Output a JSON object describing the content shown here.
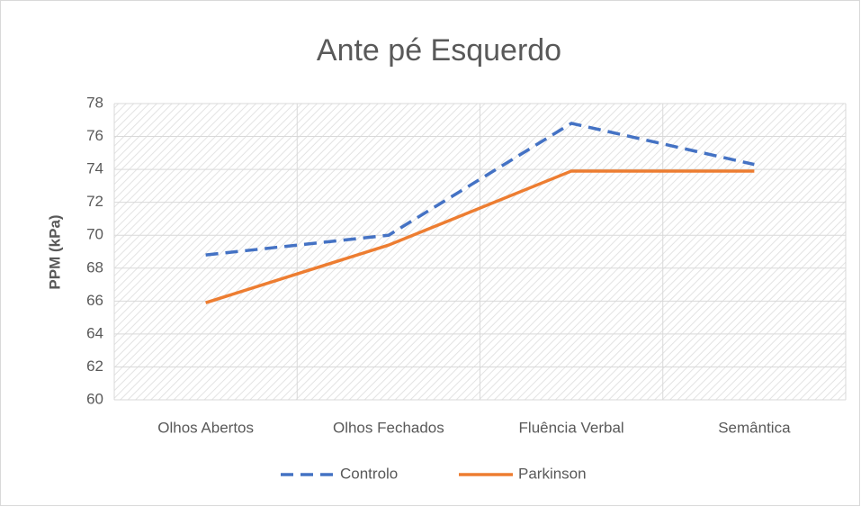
{
  "chart_data": {
    "type": "line",
    "title": "Ante pé Esquerdo",
    "y_label": "PPM (kPa)",
    "categories": [
      "Olhos Abertos",
      "Olhos Fechados",
      "Fluência Verbal",
      "Semântica"
    ],
    "series": [
      {
        "name": "Controlo",
        "color": "#4472c4",
        "dashed": true,
        "values": [
          68.8,
          70.0,
          76.8,
          74.3
        ]
      },
      {
        "name": "Parkinson",
        "color": "#ed7d31",
        "dashed": false,
        "values": [
          65.9,
          69.4,
          73.9,
          73.9
        ]
      }
    ],
    "ylim": [
      60,
      78
    ],
    "yticks": [
      60,
      62,
      64,
      66,
      68,
      70,
      72,
      74,
      76,
      78
    ],
    "grid": true,
    "legend": "bottom"
  }
}
